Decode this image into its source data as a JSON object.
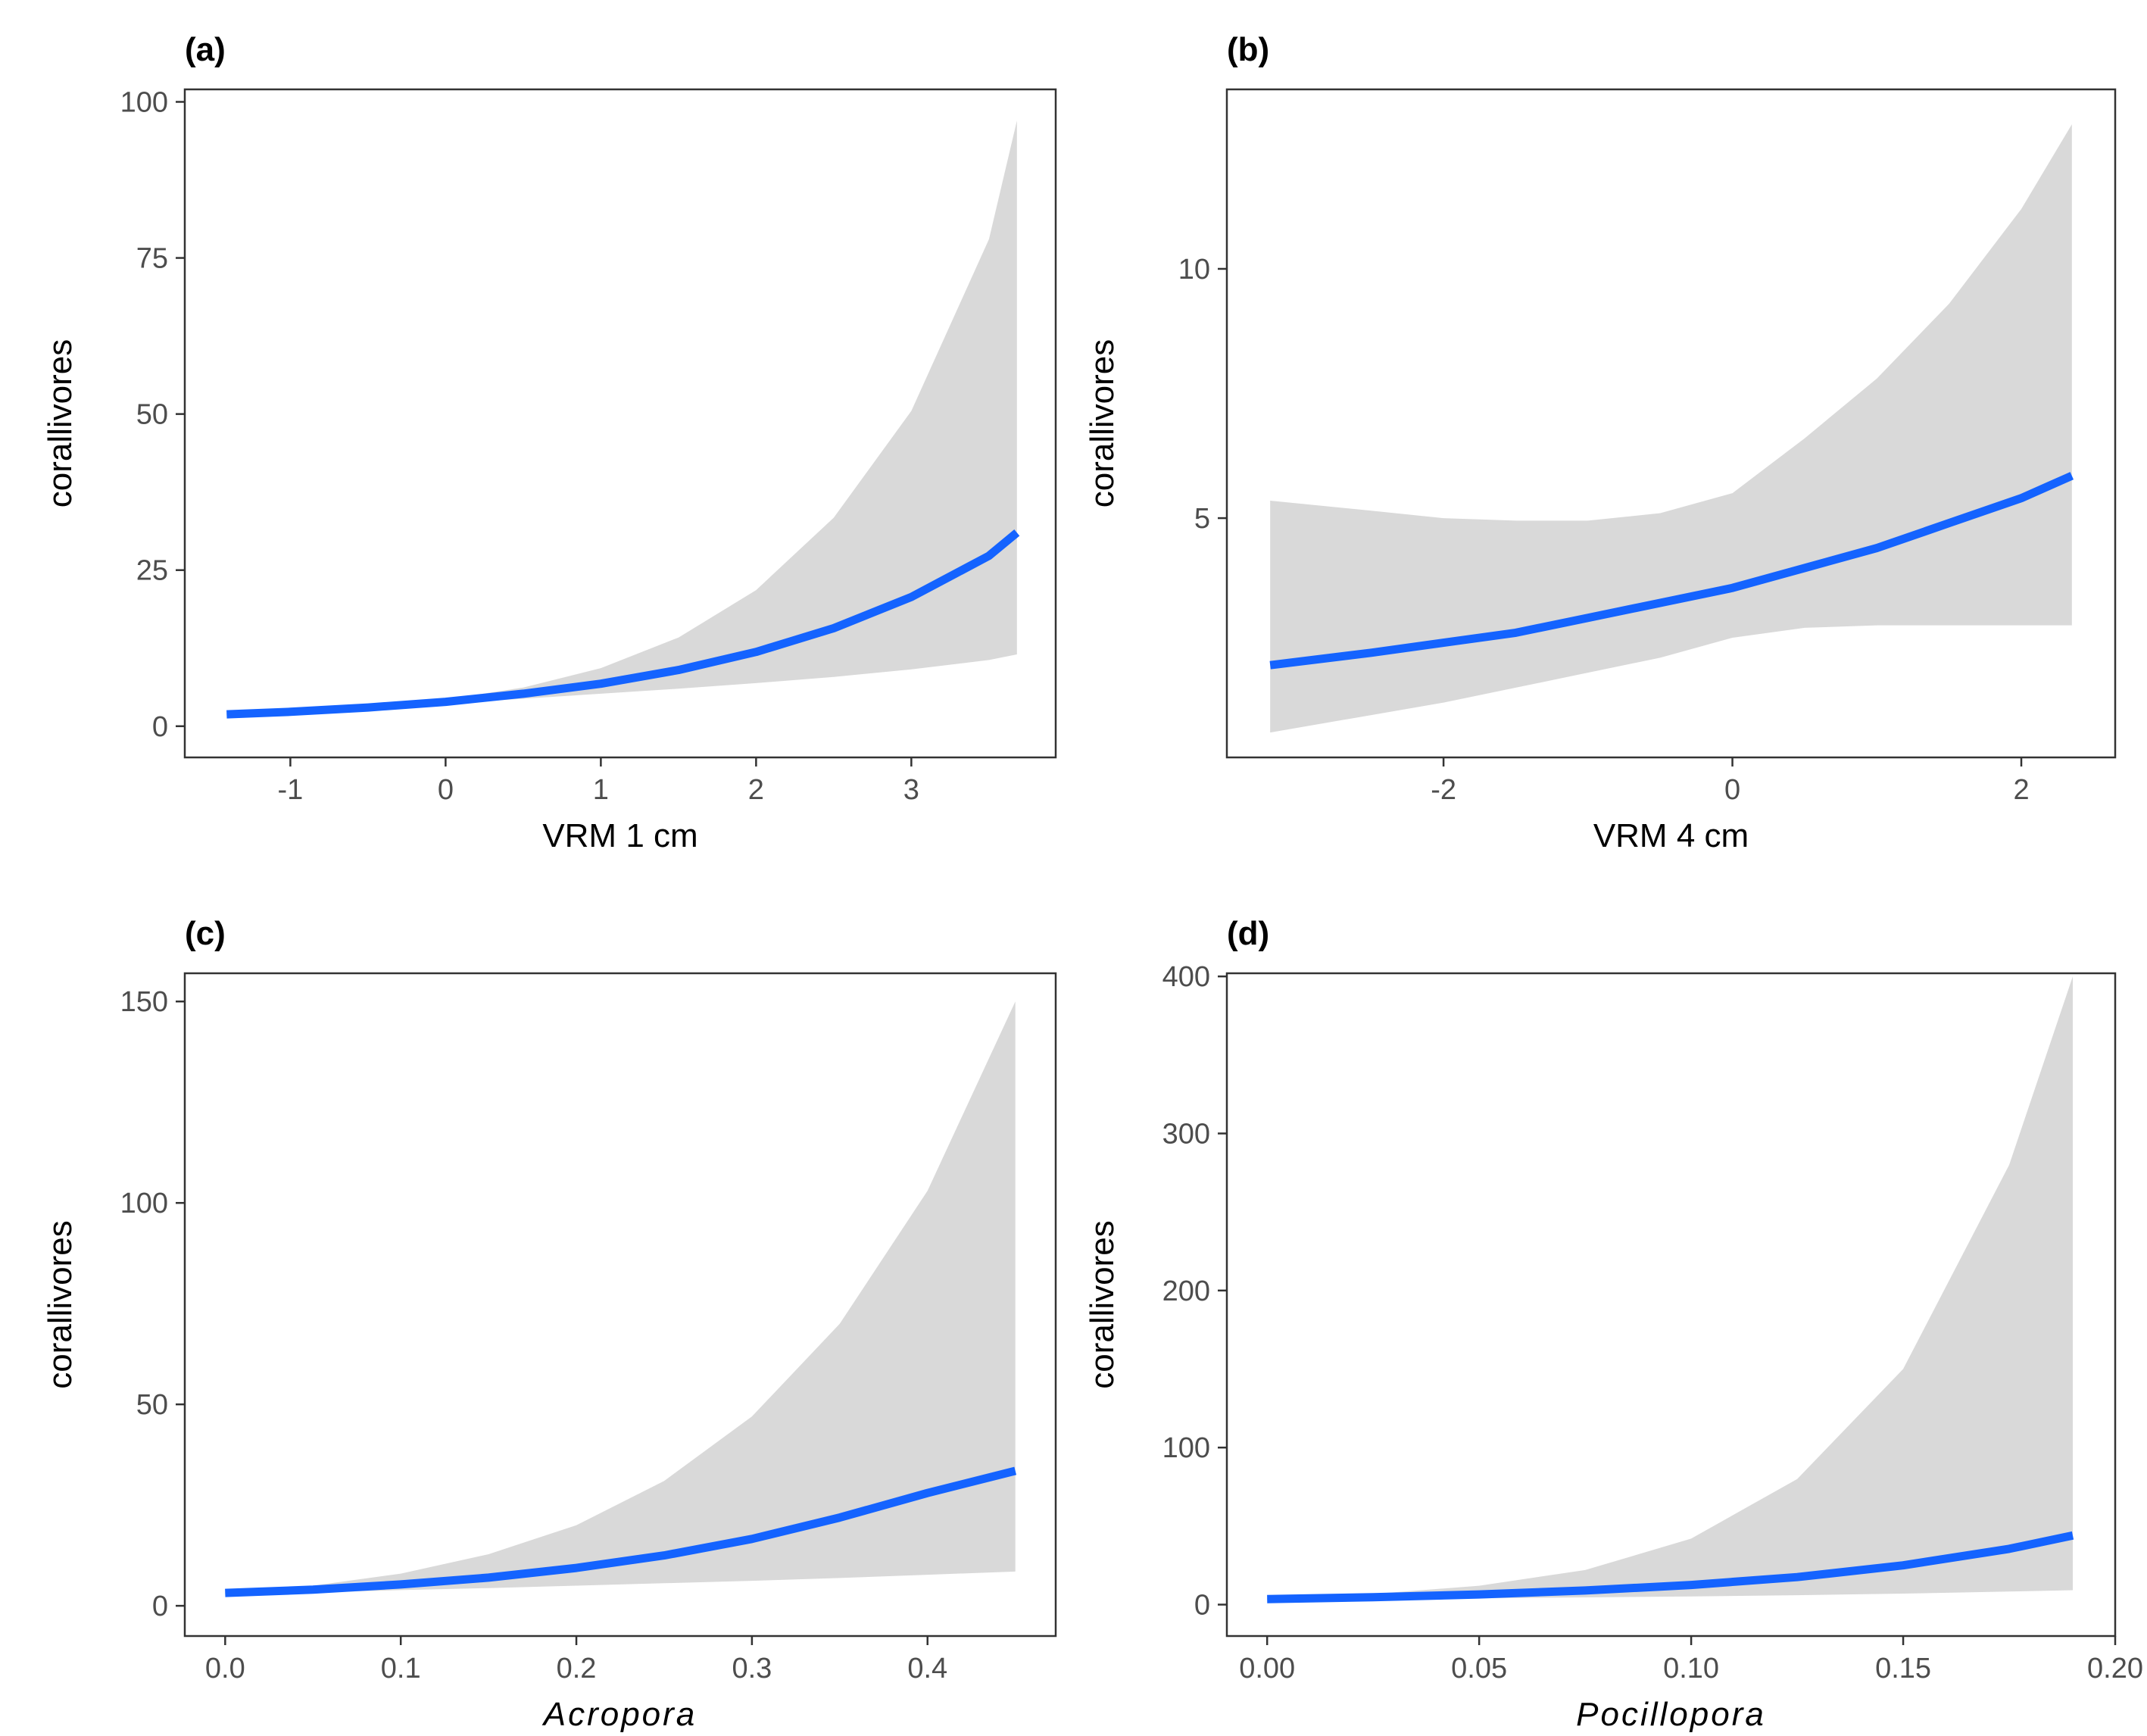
{
  "colors": {
    "line": "#1463FF",
    "ribbon": "#D9D9D9",
    "panel_border": "#333333",
    "tick": "#333333",
    "tick_label": "#4d4d4d"
  },
  "chart_data": [
    {
      "panel_label": "(a)",
      "type": "line",
      "xlabel": "VRM 1 cm",
      "xlabel_italic": false,
      "ylabel": "corallivores",
      "xlim": [
        -1.68,
        3.93
      ],
      "ylim": [
        -5,
        102
      ],
      "xticks": [
        -1,
        0,
        1,
        2,
        3
      ],
      "xtick_labels": [
        "-1",
        "0",
        "1",
        "2",
        "3"
      ],
      "yticks": [
        0,
        25,
        50,
        75,
        100
      ],
      "ytick_labels": [
        "0",
        "25",
        "50",
        "75",
        "100"
      ],
      "grid": false,
      "x": [
        -1.41,
        -1,
        -0.5,
        0,
        0.5,
        1,
        1.5,
        2,
        2.5,
        3,
        3.5,
        3.68
      ],
      "fit": [
        1.9,
        2.3,
        3.0,
        3.9,
        5.2,
        6.8,
        9.0,
        11.9,
        15.7,
        20.7,
        27.3,
        31.0
      ],
      "lower": [
        1.7,
        2.1,
        2.8,
        3.6,
        4.4,
        5.2,
        6.0,
        6.9,
        7.9,
        9.1,
        10.6,
        11.5
      ],
      "upper": [
        2.2,
        2.6,
        3.3,
        4.3,
        6.2,
        9.3,
        14.2,
        21.8,
        33.4,
        50.5,
        78.0,
        97.0
      ]
    },
    {
      "panel_label": "(b)",
      "type": "line",
      "xlabel": "VRM 4 cm",
      "xlabel_italic": false,
      "ylabel": "corallivores",
      "xlim": [
        -3.5,
        2.65
      ],
      "ylim": [
        0.2,
        13.6
      ],
      "xticks": [
        -2,
        0,
        2
      ],
      "xtick_labels": [
        "-2",
        "0",
        "2"
      ],
      "yticks": [
        5,
        10
      ],
      "ytick_labels": [
        "5",
        "10"
      ],
      "grid": false,
      "x": [
        -3.2,
        -2.5,
        -2,
        -1.5,
        -1,
        -0.5,
        0,
        0.5,
        1,
        1.5,
        2,
        2.35
      ],
      "fit": [
        2.05,
        2.3,
        2.5,
        2.7,
        3.0,
        3.3,
        3.6,
        4.0,
        4.4,
        4.9,
        5.4,
        5.85
      ],
      "lower": [
        0.7,
        1.05,
        1.3,
        1.6,
        1.9,
        2.2,
        2.6,
        2.8,
        2.85,
        2.85,
        2.85,
        2.85
      ],
      "upper": [
        5.35,
        5.15,
        5.0,
        4.95,
        4.95,
        5.1,
        5.5,
        6.6,
        7.8,
        9.3,
        11.2,
        12.9
      ]
    },
    {
      "panel_label": "(c)",
      "type": "line",
      "xlabel": "Acropora",
      "xlabel_italic": true,
      "ylabel": "corallivores",
      "xlim": [
        -0.023,
        0.473
      ],
      "ylim": [
        -7.5,
        157
      ],
      "xticks": [
        0.0,
        0.1,
        0.2,
        0.3,
        0.4
      ],
      "xtick_labels": [
        "0.0",
        "0.1",
        "0.2",
        "0.3",
        "0.4"
      ],
      "yticks": [
        0,
        50,
        100,
        150
      ],
      "ytick_labels": [
        "0",
        "50",
        "100",
        "150"
      ],
      "grid": false,
      "x": [
        0,
        0.05,
        0.1,
        0.15,
        0.2,
        0.25,
        0.3,
        0.35,
        0.4,
        0.45
      ],
      "fit": [
        3.2,
        4.0,
        5.3,
        7.0,
        9.4,
        12.5,
        16.6,
        21.9,
        28.0,
        33.5
      ],
      "lower": [
        2.8,
        3.3,
        3.9,
        4.4,
        5.0,
        5.6,
        6.2,
        6.9,
        7.7,
        8.5
      ],
      "upper": [
        3.6,
        5.0,
        8.0,
        12.8,
        20.0,
        31.0,
        47.0,
        70.0,
        103.0,
        150.0
      ]
    },
    {
      "panel_label": "(d)",
      "type": "line",
      "xlabel": "Pocillopora",
      "xlabel_italic": true,
      "ylabel": "corallivores",
      "xlim": [
        -0.0095,
        0.2
      ],
      "ylim": [
        -20,
        402
      ],
      "xticks": [
        0.0,
        0.05,
        0.1,
        0.15,
        0.2
      ],
      "xtick_labels": [
        "0.00",
        "0.05",
        "0.10",
        "0.15",
        "0.20"
      ],
      "yticks": [
        0,
        100,
        200,
        300,
        400
      ],
      "ytick_labels": [
        "0",
        "100",
        "200",
        "300",
        "400"
      ],
      "grid": false,
      "x": [
        0,
        0.025,
        0.05,
        0.075,
        0.1,
        0.125,
        0.15,
        0.175,
        0.19
      ],
      "fit": [
        3.5,
        4.7,
        6.5,
        9.0,
        12.5,
        17.5,
        25.0,
        35.5,
        44.0
      ],
      "lower": [
        2.9,
        3.4,
        4.0,
        4.6,
        5.2,
        6.0,
        7.0,
        8.3,
        9.2
      ],
      "upper": [
        4.2,
        6.8,
        12.0,
        22.0,
        42.0,
        80.0,
        150.0,
        280.0,
        400.0
      ]
    }
  ]
}
